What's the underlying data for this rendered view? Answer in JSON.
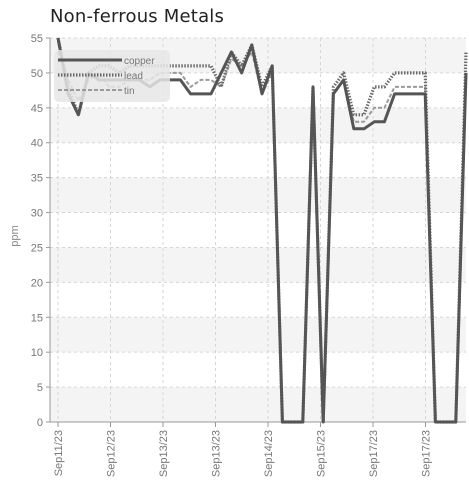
{
  "chart_data": {
    "type": "line",
    "title": "Non-ferrous Metals",
    "ylabel": "ppm",
    "xlabel": "",
    "ylim": [
      0,
      55
    ],
    "y_ticks": [
      0,
      5,
      10,
      15,
      20,
      25,
      30,
      35,
      40,
      45,
      50,
      55
    ],
    "x_tick_labels": [
      "Sep11/23",
      "Sep12/23",
      "Sep13/23",
      "Sep13/23",
      "Sep14/23",
      "Sep15/23",
      "Sep17/23",
      "Sep17/23"
    ],
    "legend_position": "top-left",
    "grid": true,
    "series": [
      {
        "name": "copper",
        "color": "#555555",
        "style": "solid",
        "values": [
          55,
          47,
          44,
          50,
          49,
          49,
          49,
          49,
          49,
          48,
          49,
          49,
          49,
          47,
          47,
          47,
          50,
          53,
          50,
          54,
          47,
          51,
          0,
          0,
          0,
          48,
          0,
          47,
          49,
          42,
          42,
          43,
          43,
          47,
          47,
          47,
          47,
          0,
          0,
          0,
          50
        ]
      },
      {
        "name": "lead",
        "color": "#6a6a6a",
        "style": "dotted",
        "values": [
          55,
          48,
          44,
          50,
          51,
          51,
          50,
          51,
          51,
          51,
          51,
          51,
          51,
          51,
          51,
          51,
          48,
          53,
          51,
          54,
          48,
          51,
          0,
          0,
          0,
          48,
          0,
          48,
          50,
          44,
          44,
          48,
          48,
          50,
          50,
          50,
          50,
          0,
          0,
          0,
          53
        ]
      },
      {
        "name": "tin",
        "color": "#9a9a9a",
        "style": "dashed",
        "values": [
          53,
          49,
          46,
          49,
          50,
          48,
          48,
          49,
          49,
          49,
          50,
          50,
          50,
          48,
          49,
          49,
          48,
          52,
          51,
          53,
          47,
          50,
          0,
          0,
          0,
          47,
          0,
          47,
          49,
          43,
          43,
          45,
          45,
          48,
          48,
          48,
          48,
          0,
          0,
          0,
          49
        ]
      }
    ]
  }
}
